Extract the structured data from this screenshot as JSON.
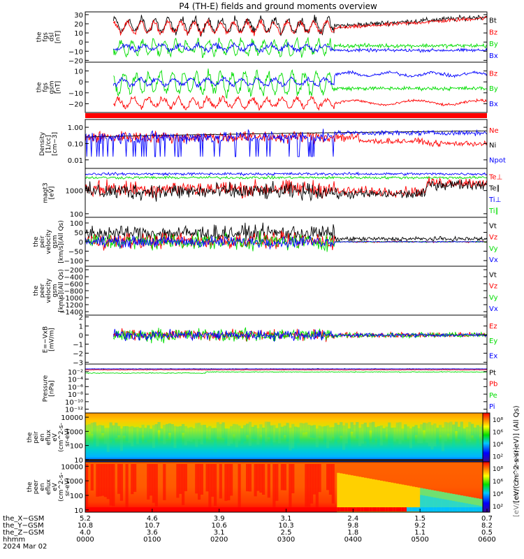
{
  "title": "P4 (TH-E) fields and ground moments overview",
  "colors": {
    "black": "#000000",
    "red": "#ff0000",
    "green": "#00dd00",
    "blue": "#0000ff"
  },
  "chart_data": [
    {
      "id": "fgs-dsl",
      "type": "line",
      "ylabel": [
        "the",
        "fgs",
        "dsl",
        "[nT]"
      ],
      "ylim": [
        -22,
        33
      ],
      "yticks": [
        30,
        20,
        10,
        0,
        -10,
        -20
      ],
      "ytick_labels": [
        "30",
        "20",
        "10",
        "0",
        "−10",
        "−20"
      ],
      "series": [
        {
          "name": "Bt",
          "color": "#000000"
        },
        {
          "name": "Bz",
          "color": "#ff0000"
        },
        {
          "name": "By",
          "color": "#00dd00"
        },
        {
          "name": "Bx",
          "color": "#0000ff"
        }
      ]
    },
    {
      "id": "fgs-gsm",
      "type": "line",
      "ylabel": [
        "the",
        "fgs",
        "gsm",
        "[nT]"
      ],
      "ylim": [
        -28,
        18
      ],
      "yticks": [
        10,
        0,
        -10,
        -20
      ],
      "ytick_labels": [
        "10",
        "0",
        "−10",
        "−20"
      ],
      "series": [
        {
          "name": "Bz",
          "color": "#ff0000"
        },
        {
          "name": "By",
          "color": "#00dd00"
        },
        {
          "name": "Bx",
          "color": "#0000ff"
        }
      ]
    },
    {
      "id": "density",
      "type": "line",
      "scale": "log",
      "ylabel": [
        "Density",
        "[1/cc]",
        "[cm−3]"
      ],
      "ylim": [
        0.003,
        3
      ],
      "yticks": [
        1,
        0.1,
        0.01
      ],
      "ytick_labels": [
        "1.00",
        "0.10",
        "0.01"
      ],
      "series": [
        {
          "name": "Ne",
          "color": "#ff0000"
        },
        {
          "name": "Ni",
          "color": "#000000"
        },
        {
          "name": "Npot",
          "color": "#0000ff"
        }
      ]
    },
    {
      "id": "temperature",
      "type": "line",
      "scale": "log",
      "ylabel": [
        "magt3",
        "[eV]"
      ],
      "ylim": [
        70,
        9000
      ],
      "yticks": [
        1000,
        100
      ],
      "ytick_labels": [
        "1000",
        "100"
      ],
      "series": [
        {
          "name": "Te⊥",
          "color": "#ff0000"
        },
        {
          "name": "Te∥",
          "color": "#000000"
        },
        {
          "name": "Ti⊥",
          "color": "#0000ff"
        },
        {
          "name": "Ti∥",
          "color": "#00dd00"
        }
      ]
    },
    {
      "id": "peir-velocity",
      "type": "line",
      "ylabel": [
        "the",
        "peir",
        "velocity",
        "gsm",
        "[km/s](All Qs)"
      ],
      "ylim": [
        -130,
        130
      ],
      "yticks": [
        100,
        50,
        0,
        -50,
        -100
      ],
      "ytick_labels": [
        "100",
        "50",
        "0",
        "−50",
        "−100"
      ],
      "series": [
        {
          "name": "Vt",
          "color": "#000000"
        },
        {
          "name": "Vz",
          "color": "#ff0000"
        },
        {
          "name": "Vy",
          "color": "#00dd00"
        },
        {
          "name": "Vx",
          "color": "#0000ff"
        }
      ]
    },
    {
      "id": "peer-velocity",
      "type": "line",
      "ylabel": [
        "the",
        "peer",
        "velocity",
        "gsm",
        "[km/s](All Qs)"
      ],
      "ylim": [
        -1500,
        -100
      ],
      "yticks": [
        -200,
        -400,
        -600,
        -800,
        -1000,
        -1200,
        -1400
      ],
      "ytick_labels": [
        "−200",
        "−400",
        "−600",
        "−800",
        "−1000",
        "−1200",
        "−1400"
      ],
      "series": [
        {
          "name": "Vt",
          "color": "#000000"
        },
        {
          "name": "Vz",
          "color": "#ff0000"
        },
        {
          "name": "Vy",
          "color": "#00dd00"
        },
        {
          "name": "Vx",
          "color": "#0000ff"
        }
      ]
    },
    {
      "id": "exb",
      "type": "line",
      "ylabel": [
        "E=−VxB",
        "[mV/m]"
      ],
      "ylim": [
        -3.2,
        2.2
      ],
      "yticks": [
        2,
        1,
        0,
        -1,
        -2,
        -3
      ],
      "ytick_labels": [
        "2",
        "1",
        "0",
        "−1",
        "−2",
        "−3"
      ],
      "series": [
        {
          "name": "Ez",
          "color": "#ff0000"
        },
        {
          "name": "Ey",
          "color": "#00dd00"
        },
        {
          "name": "Ex",
          "color": "#0000ff"
        }
      ]
    },
    {
      "id": "pressure",
      "type": "line",
      "scale": "log",
      "ylabel": [
        "Pressure",
        "[nPa]"
      ],
      "ylim": [
        1e-13,
        1
      ],
      "yticks": [
        0.01,
        0.0001,
        1e-06,
        1e-08,
        1e-10,
        1e-12
      ],
      "ytick_labels": [
        "10⁻²",
        "10⁻⁴",
        "10⁻⁶",
        "10⁻⁸",
        "10⁻¹⁰",
        "10⁻¹²"
      ],
      "series": [
        {
          "name": "Pt",
          "color": "#000000"
        },
        {
          "name": "Pb",
          "color": "#ff0000"
        },
        {
          "name": "Pe",
          "color": "#00dd00"
        },
        {
          "name": "Pi",
          "color": "#0000ff"
        }
      ]
    },
    {
      "id": "peir-eflux",
      "type": "heatmap",
      "scale": "log",
      "ylabel": [
        "the",
        "peir",
        "en",
        "eflux",
        "eV",
        "(cm^2-s-",
        "sr-eV)"
      ],
      "ylim": [
        7,
        20000
      ],
      "yticks": [
        10000,
        1000,
        100,
        10
      ],
      "ytick_labels": [
        "10000",
        "1000",
        "100",
        "10"
      ]
    },
    {
      "id": "peer-eflux",
      "type": "heatmap",
      "scale": "log",
      "ylabel": [
        "the",
        "peer",
        "en",
        "eflux",
        "eV",
        "(cm^2-s-",
        "sr-eV)"
      ],
      "ylim": [
        7,
        20000
      ],
      "yticks": [
        10000,
        1000,
        100,
        10
      ],
      "ytick_labels": [
        "10000",
        "1000",
        "100",
        "10"
      ]
    }
  ],
  "colorbar_peir": {
    "tick_labels": [
      "10⁸",
      "10⁶",
      "10⁴",
      "10²"
    ],
    "label": "[eV/(cm^2-s-sr-eV)] (All Qs)"
  },
  "colorbar_peer": {
    "tick_labels": [
      "10⁸",
      "10⁶",
      "10⁴",
      "10²"
    ],
    "label": "[eV/(cm^2-s-sr-eV)]"
  },
  "x_axis": {
    "rows": [
      {
        "label": "the_X−GSM",
        "values": [
          "5.2",
          "4.6",
          "3.9",
          "3.1",
          "2.4",
          "1.5",
          "0.7"
        ]
      },
      {
        "label": "the_Y−GSM",
        "values": [
          "10.8",
          "10.7",
          "10.6",
          "10.3",
          "9.8",
          "9.2",
          "8.2"
        ]
      },
      {
        "label": "the_Z−GSM",
        "values": [
          "4.0",
          "3.6",
          "3.1",
          "2.5",
          "1.8",
          "1.1",
          "0.5"
        ]
      },
      {
        "label": "hhmm",
        "values": [
          "0000",
          "0100",
          "0200",
          "0300",
          "0400",
          "0500",
          "0600"
        ]
      }
    ],
    "date": "2024 Mar 02"
  }
}
